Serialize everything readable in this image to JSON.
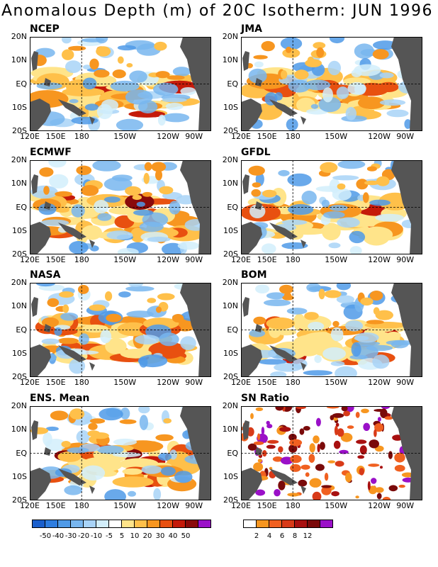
{
  "title": "Anomalous Depth (m) of 20C Isotherm: JUN 1996",
  "panels": [
    {
      "name": "NCEP"
    },
    {
      "name": "JMA"
    },
    {
      "name": "ECMWF"
    },
    {
      "name": "GFDL"
    },
    {
      "name": "NASA"
    },
    {
      "name": "BOM"
    },
    {
      "name": "ENS. Mean"
    },
    {
      "name": "SN Ratio"
    }
  ],
  "axes": {
    "lat_labels": [
      "20N",
      "10N",
      "EQ",
      "10S",
      "20S"
    ],
    "lon_labels": [
      "120E",
      "150E",
      "180",
      "150W",
      "120W",
      "90W"
    ]
  },
  "colorbar_main": {
    "labels": [
      "-50",
      "-40",
      "-30",
      "-20",
      "-10",
      "-5",
      "5",
      "10",
      "20",
      "30",
      "40",
      "50"
    ],
    "colors": [
      "#1a5fcc",
      "#2e7de0",
      "#4f9ae8",
      "#78b6ef",
      "#a8d3f7",
      "#d2eefb",
      "#ffffff",
      "#ffe48a",
      "#ffc04a",
      "#f79620",
      "#e85010",
      "#c41a0a",
      "#8a0a0a",
      "#9a10c8"
    ]
  },
  "colorbar_sn": {
    "labels": [
      "2",
      "4",
      "6",
      "8",
      "12"
    ],
    "colors": [
      "#ffffff",
      "#f79620",
      "#f06020",
      "#d83a18",
      "#a81010",
      "#7a0a0a",
      "#9a10c8"
    ]
  }
}
